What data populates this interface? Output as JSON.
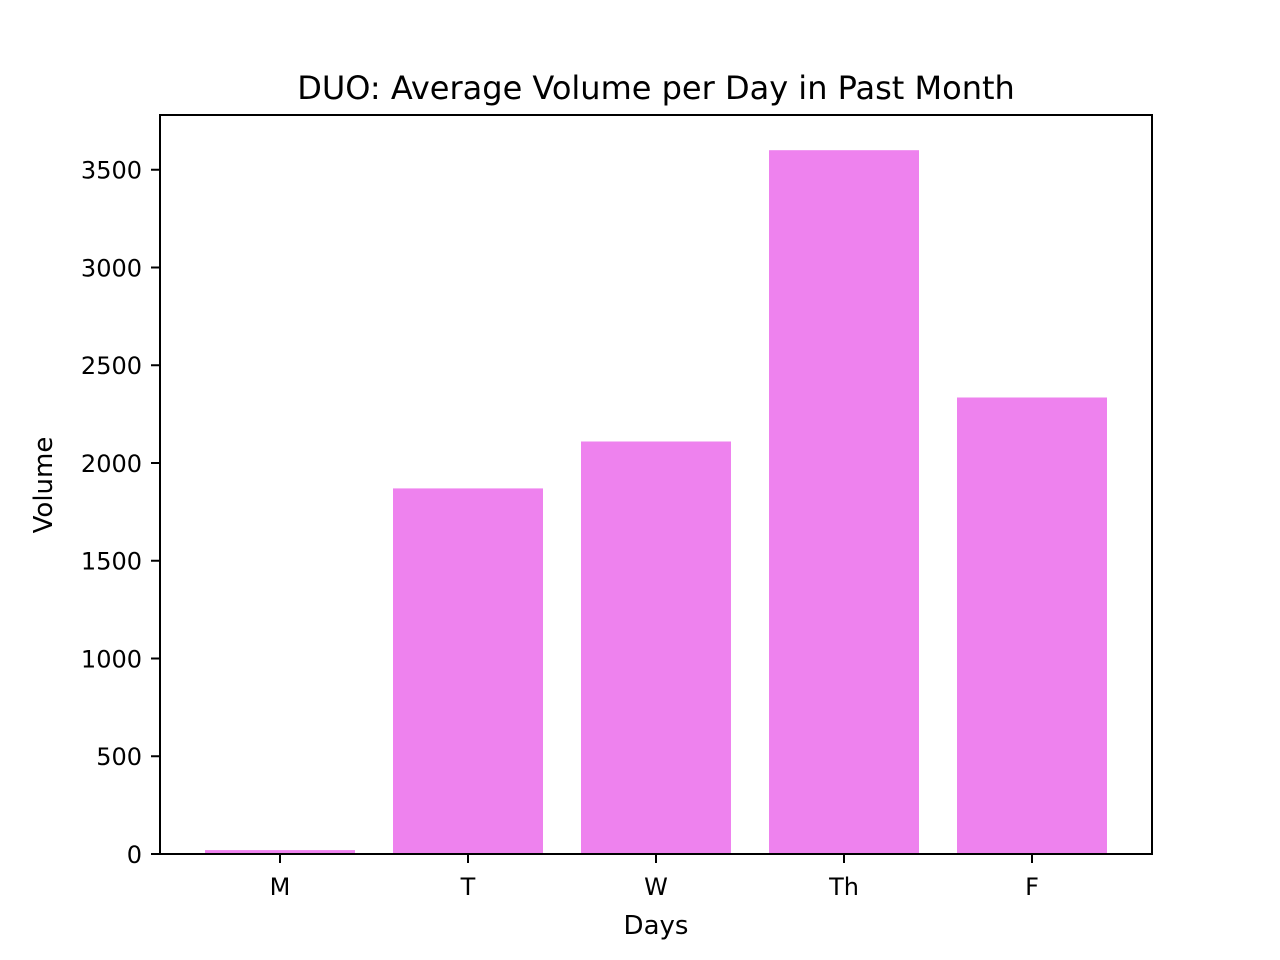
{
  "chart_data": {
    "type": "bar",
    "title": "DUO: Average Volume per Day in Past Month",
    "xlabel": "Days",
    "ylabel": "Volume",
    "categories": [
      "M",
      "T",
      "W",
      "Th",
      "F"
    ],
    "values": [
      20,
      1870,
      2110,
      3600,
      2335
    ],
    "ylim": [
      0,
      3780
    ],
    "yticks": [
      0,
      500,
      1000,
      1500,
      2000,
      2500,
      3000,
      3500
    ],
    "bar_color": "#ee82ee",
    "grid": false,
    "legend": false
  }
}
